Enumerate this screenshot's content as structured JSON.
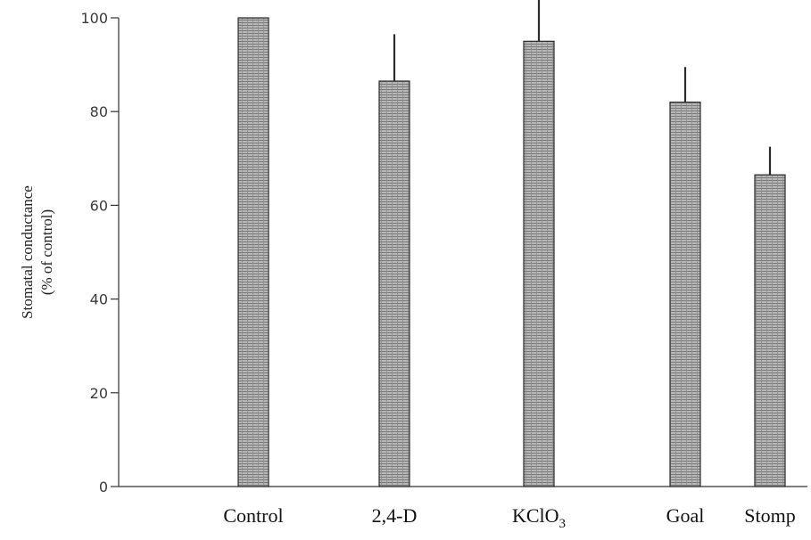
{
  "chart_data": {
    "type": "bar",
    "title": "",
    "xlabel": "",
    "ylabel": {
      "line1": "Stomatal conductance",
      "line2": "(% of control)"
    },
    "ylim": [
      0,
      100
    ],
    "yticks": [
      "0",
      "20",
      "40",
      "60",
      "80",
      "100"
    ],
    "categories": [
      {
        "text": "Control",
        "sub": ""
      },
      {
        "text": "2,4-D",
        "sub": ""
      },
      {
        "text": "KClO",
        "sub": "3"
      },
      {
        "text": "Goal",
        "sub": ""
      },
      {
        "text": "Stomp",
        "sub": ""
      }
    ],
    "values": [
      100,
      86.5,
      95,
      82,
      66.5
    ],
    "error_upper": [
      100,
      96.5,
      104,
      89.5,
      72.5
    ],
    "grid": false,
    "legend": "none"
  },
  "colors": {
    "bar_fill": "#a9a9a9",
    "bar_stroke": "#2b2b2b",
    "axis": "#333333",
    "error_bar": "#2b2b2b"
  }
}
